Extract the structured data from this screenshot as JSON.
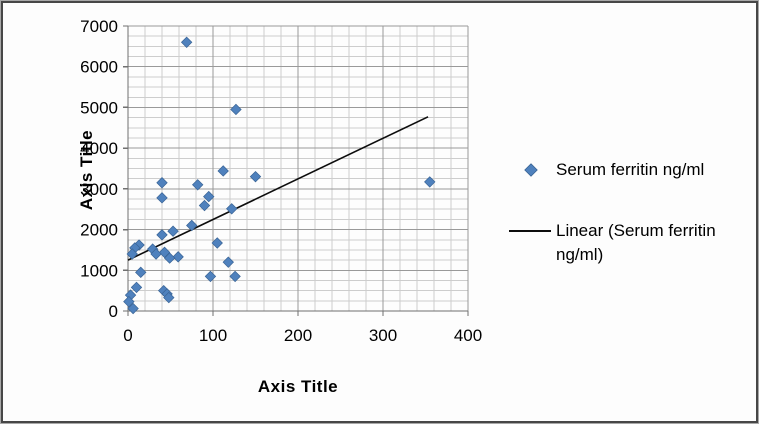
{
  "chart": {
    "y_axis_title": "Axis Title",
    "x_axis_title": "Axis Title"
  },
  "legend": {
    "items": [
      {
        "label": "Serum ferritin ng/ml",
        "marker": "diamond",
        "color": "#4F81BD"
      },
      {
        "label": "Linear (Serum ferritin ng/ml)",
        "marker": "line",
        "color": "#0d0d0d"
      }
    ]
  },
  "colors": {
    "marker_fill": "#4F81BD",
    "marker_stroke": "#3A6495",
    "trendline": "#0d0d0d",
    "grid_minor": "#cdcdcd",
    "grid_major": "#999999",
    "axis_line": "#707070",
    "text": "#000000"
  },
  "chart_data": {
    "type": "scatter",
    "title": "",
    "xlabel": "Axis Title",
    "ylabel": "Axis Title",
    "xlim": [
      0,
      400
    ],
    "ylim": [
      0,
      7000
    ],
    "x_major_ticks": [
      0,
      100,
      200,
      300,
      400
    ],
    "y_major_ticks": [
      0,
      1000,
      2000,
      3000,
      4000,
      5000,
      6000,
      7000
    ],
    "x_minor_step": 20,
    "y_minor_step": 250,
    "grid": "major and minor gridlines on both axes",
    "legend_position": "right",
    "series": [
      {
        "name": "Serum ferritin ng/ml",
        "type": "scatter",
        "marker": "diamond",
        "color": "#4F81BD",
        "points": [
          [
            69,
            6600
          ],
          [
            127,
            4950
          ],
          [
            112,
            3440
          ],
          [
            150,
            3300
          ],
          [
            355,
            3170
          ],
          [
            40,
            3150
          ],
          [
            82,
            3100
          ],
          [
            95,
            2810
          ],
          [
            40,
            2780
          ],
          [
            90,
            2590
          ],
          [
            122,
            2510
          ],
          [
            75,
            2100
          ],
          [
            53,
            1960
          ],
          [
            40,
            1870
          ],
          [
            105,
            1670
          ],
          [
            13,
            1620
          ],
          [
            8,
            1550
          ],
          [
            29,
            1520
          ],
          [
            43,
            1440
          ],
          [
            5,
            1400
          ],
          [
            33,
            1400
          ],
          [
            59,
            1330
          ],
          [
            49,
            1300
          ],
          [
            118,
            1200
          ],
          [
            15,
            950
          ],
          [
            97,
            850
          ],
          [
            126,
            850
          ],
          [
            10,
            580
          ],
          [
            42,
            500
          ],
          [
            46,
            420
          ],
          [
            3,
            390
          ],
          [
            48,
            330
          ],
          [
            1,
            230
          ],
          [
            6,
            60
          ]
        ]
      },
      {
        "name": "Linear (Serum ferritin ng/ml)",
        "type": "trendline",
        "color": "#0d0d0d",
        "points": [
          [
            0,
            1250
          ],
          [
            353,
            4770
          ]
        ]
      }
    ]
  }
}
